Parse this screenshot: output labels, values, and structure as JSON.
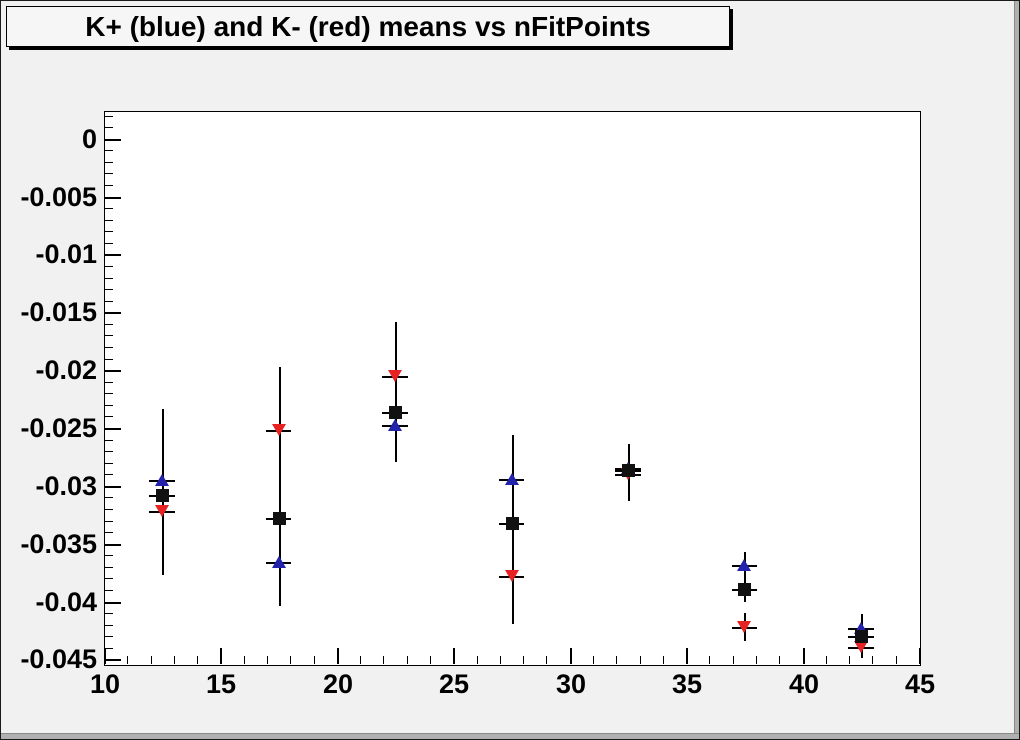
{
  "title_pave": {
    "text": "K+ (blue) and K- (red) means vs nFitPoints"
  },
  "colors": {
    "canvas_background": "#f1f1f1",
    "frame_background": "#ffffff",
    "axis": "#000000",
    "kplus_blue": "#2222aa",
    "kminus_red": "#e62222",
    "mean_black": "#111111"
  },
  "chart_data": {
    "type": "scatter",
    "title": "K+ (blue) and K- (red) means vs nFitPoints",
    "xlabel": "",
    "ylabel": "",
    "grid": false,
    "legend": "none",
    "x_range": [
      10,
      45
    ],
    "y_range": [
      -0.0454,
      0.0024
    ],
    "x_tick_values": [
      10,
      15,
      20,
      25,
      30,
      35,
      40,
      45
    ],
    "x_tick_labels": [
      "10",
      "15",
      "20",
      "25",
      "30",
      "35",
      "40",
      "45"
    ],
    "x_minor_step": 1,
    "y_tick_values": [
      0,
      -0.005,
      -0.01,
      -0.015,
      -0.02,
      -0.025,
      -0.03,
      -0.035,
      -0.04,
      -0.045
    ],
    "y_tick_labels": [
      "0",
      "-0.005",
      "-0.01",
      "-0.015",
      "-0.02",
      "-0.025",
      "-0.03",
      "-0.035",
      "-0.04",
      "-0.045"
    ],
    "y_minor_step": 0.001,
    "x": [
      12.5,
      17.5,
      22.5,
      27.5,
      32.5,
      37.5,
      42.5
    ],
    "x_error_halfwidth": 0.55,
    "series": [
      {
        "id": "kplus",
        "name": "K+ (blue up-triangles)",
        "marker": "triangle-up",
        "color": "#2222aa",
        "y": [
          -0.0295,
          -0.0366,
          -0.0247,
          -0.0294,
          -0.0285,
          -0.0368,
          -0.0423
        ]
      },
      {
        "id": "kminus",
        "name": "K- (red down-triangles)",
        "marker": "triangle-down",
        "color": "#e62222",
        "y": [
          -0.0322,
          -0.0252,
          -0.0205,
          -0.0378,
          -0.029,
          -0.0422,
          -0.0439
        ]
      },
      {
        "id": "mean",
        "name": "mean (black squares)",
        "marker": "square",
        "color": "#111111",
        "y": [
          -0.0308,
          -0.0328,
          -0.0236,
          -0.0332,
          -0.0286,
          -0.0389,
          -0.043
        ]
      }
    ],
    "error_bar_segments": [
      {
        "x": 12.5,
        "segments": [
          [
            -0.0234,
            -0.0377
          ]
        ]
      },
      {
        "x": 17.5,
        "segments": [
          [
            -0.0197,
            -0.0404
          ]
        ]
      },
      {
        "x": 22.5,
        "segments": [
          [
            -0.0158,
            -0.0279
          ]
        ]
      },
      {
        "x": 27.5,
        "segments": [
          [
            -0.0256,
            -0.0419
          ]
        ]
      },
      {
        "x": 32.5,
        "segments": [
          [
            -0.0264,
            -0.0313
          ]
        ]
      },
      {
        "x": 37.5,
        "segments": [
          [
            -0.0357,
            -0.04
          ],
          [
            -0.041,
            -0.0434
          ]
        ]
      },
      {
        "x": 42.5,
        "segments": [
          [
            -0.0411,
            -0.0449
          ]
        ]
      }
    ]
  }
}
